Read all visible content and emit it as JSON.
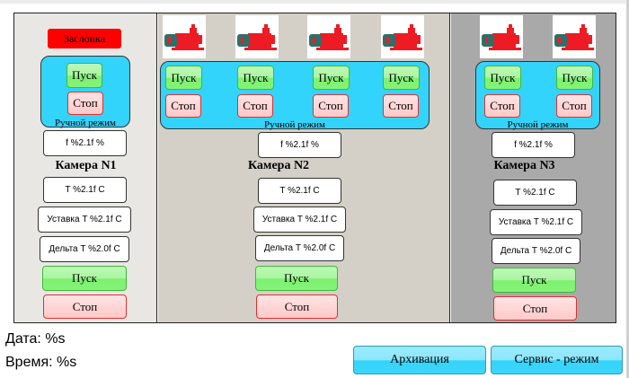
{
  "damper_label": "Заслонка",
  "manual_mode": "Ручной режим",
  "start": "Пуск",
  "stop": "Стоп",
  "chambers": [
    {
      "title": "Камера N1",
      "f": "f %2.1f %",
      "t": "T %2.1f C",
      "setpoint": "Уставка T %2.1f C",
      "delta": "Дельта T %2.0f C",
      "pumps": 0
    },
    {
      "title": "Камера N2",
      "f": "f %2.1f %",
      "t": "T %2.1f C",
      "setpoint": "Уставка T %2.1f C",
      "delta": "Дельта T %2.0f C",
      "pumps": 4
    },
    {
      "title": "Камера N3",
      "f": "f %2.1f %",
      "t": "T %2.1f C",
      "setpoint": "Уставка T %2.1f C",
      "delta": "Дельта T %2.0f C",
      "pumps": 2
    }
  ],
  "footer": {
    "date": "Дата: %s",
    "time": "Время: %s",
    "archive": "Архивация",
    "service": "Сервис - режим"
  },
  "colors": {
    "damper": "#ff0000",
    "manual_panel": "#33d4fb",
    "start": "#84f378",
    "stop": "#ffd6d6",
    "pump_body": "#ed1c24",
    "pump_motor": "#2f6f6a"
  }
}
